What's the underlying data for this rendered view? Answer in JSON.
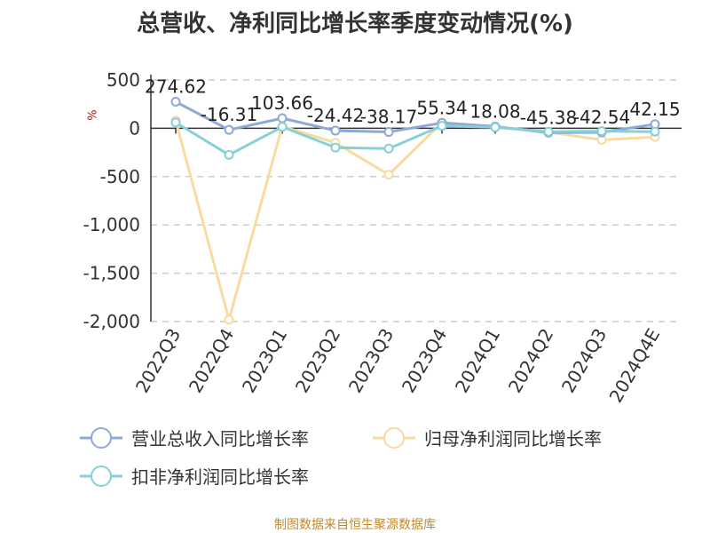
{
  "chart_data": {
    "type": "line",
    "title": "总营收、净利同比增长率季度变动情况(%)",
    "ylabel": "%",
    "source": "制图数据来自恒生聚源数据库",
    "categories": [
      "2022Q3",
      "2022Q4",
      "2023Q1",
      "2023Q2",
      "2023Q3",
      "2023Q4",
      "2024Q1",
      "2024Q2",
      "2024Q3",
      "2024Q4E"
    ],
    "ylim": [
      -2000,
      500
    ],
    "yticks": [
      500,
      0,
      -500,
      -1000,
      -1500,
      -2000
    ],
    "ytick_labels": [
      "500",
      "0",
      "-500",
      "-1,000",
      "-1,500",
      "-2,000"
    ],
    "grid": true,
    "legend_position": "bottom",
    "series": [
      {
        "name": "营业总收入同比增长率",
        "color": "#8fa9d6",
        "values": [
          274.62,
          -16.31,
          103.66,
          -24.42,
          -38.17,
          55.34,
          18.08,
          -45.38,
          -42.54,
          42.15
        ],
        "labels": [
          "274.62",
          "-16.31",
          "103.66",
          "-24.42",
          "-38.17",
          "55.34",
          "18.08",
          "-45.38",
          "-42.54",
          "42.15"
        ]
      },
      {
        "name": "归母净利润同比增长率",
        "color": "#f7dba0",
        "values": [
          80,
          -1980,
          20,
          -150,
          -480,
          60,
          15,
          -40,
          -120,
          -90
        ]
      },
      {
        "name": "扣非净利润同比增长率",
        "color": "#86d0d8",
        "values": [
          60,
          -275,
          15,
          -200,
          -210,
          25,
          10,
          -35,
          -30,
          -35
        ]
      }
    ]
  }
}
